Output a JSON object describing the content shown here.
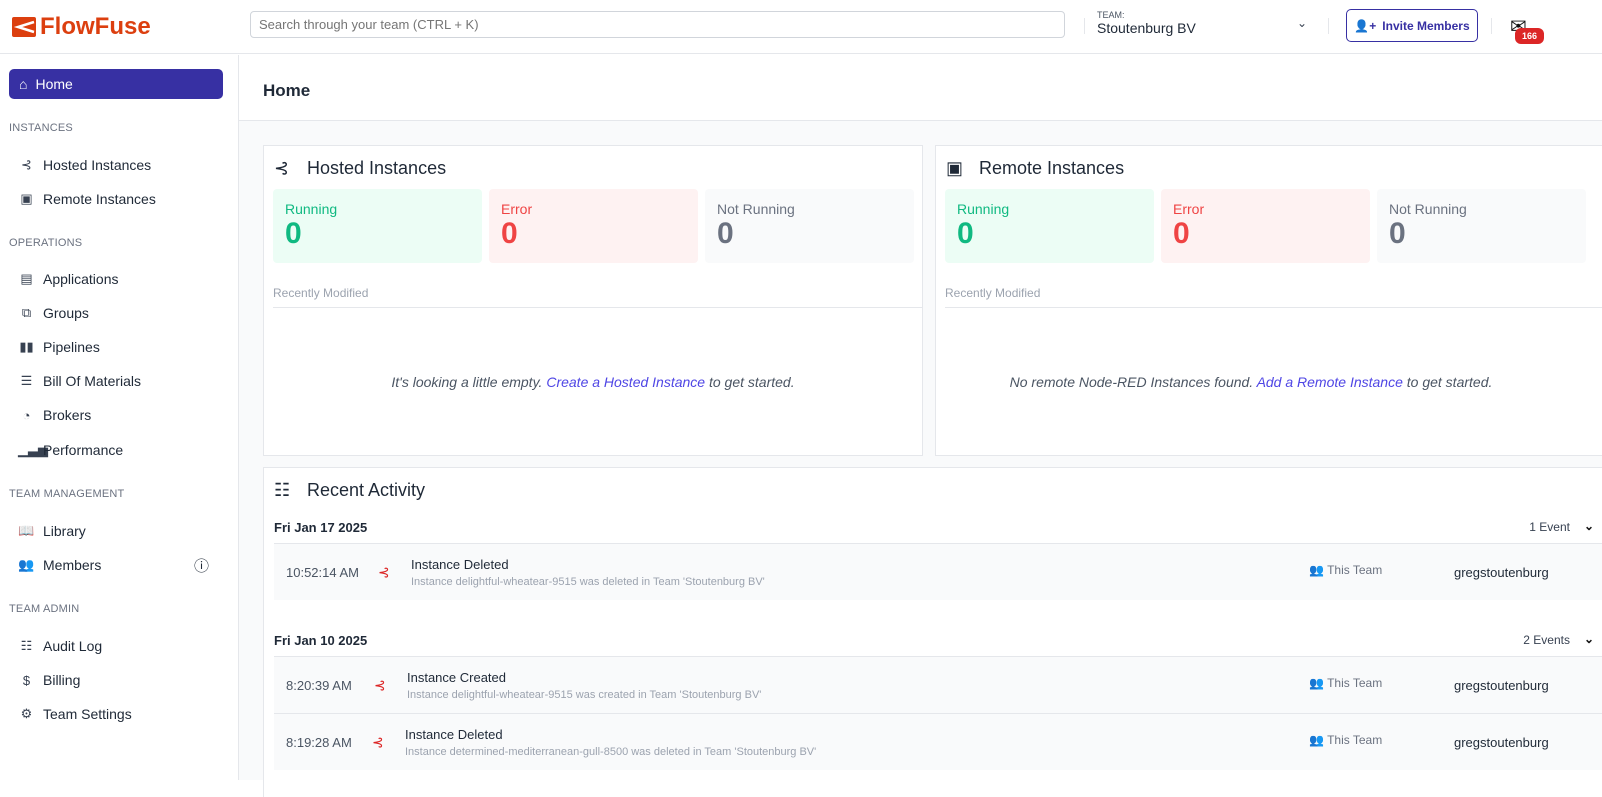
{
  "app": {
    "name": "FlowFuse"
  },
  "header": {
    "search_placeholder": "Search through your team (CTRL + K)",
    "team_label": "TEAM:",
    "team_name": "Stoutenburg BV",
    "invite_label": "Invite Members",
    "notifications_count": "166"
  },
  "sidebar": {
    "home": "Home",
    "sections": [
      "INSTANCES",
      "OPERATIONS",
      "TEAM MANAGEMENT",
      "TEAM ADMIN"
    ],
    "items": [
      "Hosted Instances",
      "Remote Instances",
      "Applications",
      "Groups",
      "Pipelines",
      "Bill Of Materials",
      "Brokers",
      "Performance",
      "Library",
      "Members",
      "Audit Log",
      "Billing",
      "Team Settings"
    ]
  },
  "page": {
    "title": "Home"
  },
  "hosted": {
    "title": "Hosted Instances",
    "running_label": "Running",
    "running": "0",
    "error_label": "Error",
    "error": "0",
    "not_running_label": "Not Running",
    "not_running": "0",
    "recent_label": "Recently Modified",
    "empty_pre": "It's looking a little empty. ",
    "empty_link": "Create a Hosted Instance",
    "empty_post": " to get started."
  },
  "remote": {
    "title": "Remote Instances",
    "running_label": "Running",
    "running": "0",
    "error_label": "Error",
    "error": "0",
    "not_running_label": "Not Running",
    "not_running": "0",
    "recent_label": "Recently Modified",
    "empty_pre": "No remote Node-RED Instances found. ",
    "empty_link": "Add a Remote Instance",
    "empty_post": " to get started."
  },
  "activity": {
    "title": "Recent Activity",
    "days": [
      {
        "date": "Fri Jan 17 2025",
        "count": "1 Event"
      },
      {
        "date": "Fri Jan 10 2025",
        "count": "2 Events"
      }
    ],
    "events": [
      {
        "time": "10:52:14 AM",
        "title": "Instance Deleted",
        "desc": "Instance delightful-wheatear-9515 was deleted in Team 'Stoutenburg BV'",
        "scope": "This Team",
        "user": "gregstoutenburg"
      },
      {
        "time": "8:20:39 AM",
        "title": "Instance Created",
        "desc": "Instance delightful-wheatear-9515 was created in Team 'Stoutenburg BV'",
        "scope": "This Team",
        "user": "gregstoutenburg"
      },
      {
        "time": "8:19:28 AM",
        "title": "Instance Deleted",
        "desc": "Instance determined-mediterranean-gull-8500 was deleted in Team 'Stoutenburg BV'",
        "scope": "This Team",
        "user": "gregstoutenburg"
      }
    ]
  },
  "colors": {
    "brand": "#dc3f0f",
    "accent": "#3730a3",
    "running": "#10b981",
    "error": "#ef4444",
    "not_running": "#6b7280"
  }
}
